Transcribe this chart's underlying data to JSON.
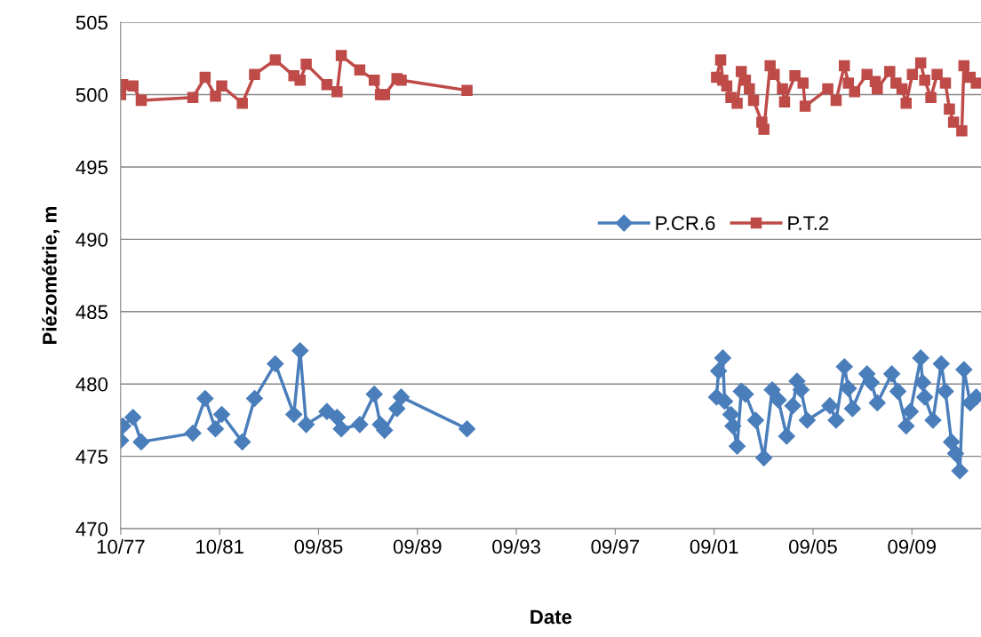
{
  "chart_data": {
    "type": "line",
    "xlabel": "Date",
    "ylabel": "Piézométrie, m",
    "xlim": [
      "1977-10-01",
      "2012-07-10"
    ],
    "ylim": [
      470,
      505
    ],
    "yticks": [
      470,
      475,
      480,
      485,
      490,
      495,
      500,
      505
    ],
    "xticks": [
      {
        "value": "1977-10-02",
        "label": "10/77"
      },
      {
        "value": "1981-10-01",
        "label": "10/81"
      },
      {
        "value": "1985-09-30",
        "label": "09/85"
      },
      {
        "value": "1989-09-29",
        "label": "09/89"
      },
      {
        "value": "1993-09-28",
        "label": "09/93"
      },
      {
        "value": "1997-09-27",
        "label": "09/97"
      },
      {
        "value": "2001-09-26",
        "label": "09/01"
      },
      {
        "value": "2005-09-25",
        "label": "09/05"
      },
      {
        "value": "2009-09-24",
        "label": "09/09"
      }
    ],
    "grid": "y",
    "legend": "center",
    "series": [
      {
        "name": "P.CR.6",
        "color": "#4a7ebb",
        "marker": "diamond",
        "x": [
          "1977-10",
          "1977-11",
          "1978-04",
          "1978-08",
          "1980-09",
          "1981-03",
          "1981-08",
          "1981-11",
          "1982-09",
          "1983-03",
          "1984-01",
          "1984-10",
          "1985-01",
          "1985-04",
          "1986-02",
          "1986-07",
          "1986-09",
          "1987-06",
          "1988-01",
          "1988-04",
          "1988-06",
          "1988-12",
          "1989-02",
          "1991-10",
          "1996-01",
          "2001-11",
          "2001-12",
          "2002-02",
          "2002-03",
          "2002-06",
          "2002-07",
          "2002-09",
          "2002-11",
          "2003-01",
          "2003-06",
          "2003-10",
          "2004-02",
          "2004-05",
          "2004-09",
          "2004-12",
          "2005-02",
          "2005-04",
          "2005-07",
          "2006-06",
          "2006-09",
          "2007-01",
          "2007-03",
          "2007-05",
          "2007-12",
          "2008-02",
          "2008-05",
          "2008-12",
          "2009-03",
          "2009-07",
          "2009-09",
          "2010-02",
          "2010-03",
          "2010-04",
          "2010-08",
          "2010-12",
          "2011-02",
          "2011-05",
          "2011-07",
          "2011-09",
          "2011-11",
          "2012-02",
          "2012-05"
        ],
        "values": [
          476.1,
          477.1,
          477.7,
          476.0,
          476.6,
          479.0,
          476.9,
          477.9,
          476.0,
          479.0,
          481.4,
          477.9,
          482.3,
          477.2,
          478.1,
          477.7,
          476.9,
          477.2,
          479.3,
          477.2,
          476.8,
          478.3,
          479.1,
          476.9,
          null,
          479.1,
          480.9,
          481.8,
          478.8,
          477.9,
          477.1,
          475.7,
          479.5,
          479.3,
          477.5,
          474.9,
          479.6,
          478.9,
          476.4,
          478.5,
          480.2,
          479.6,
          477.5,
          478.5,
          477.5,
          481.2,
          479.7,
          478.3,
          480.7,
          480.1,
          478.7,
          480.7,
          479.5,
          477.1,
          478.1,
          481.8,
          480.1,
          479.1,
          477.5,
          481.4,
          479.5,
          476.0,
          475.2,
          474.0,
          481.0,
          478.7,
          479.1
        ]
      },
      {
        "name": "P.T.2",
        "color": "#be4b48",
        "marker": "square",
        "x": [
          "1977-10",
          "1977-11",
          "1978-04",
          "1978-08",
          "1980-09",
          "1981-03",
          "1981-08",
          "1981-11",
          "1982-09",
          "1983-03",
          "1984-01",
          "1984-10",
          "1985-01",
          "1985-04",
          "1986-02",
          "1986-07",
          "1986-09",
          "1987-06",
          "1988-01",
          "1988-04",
          "1988-06",
          "1988-12",
          "1989-02",
          "1991-10",
          "1996-01",
          "2001-11",
          "2002-01",
          "2002-02",
          "2002-04",
          "2002-06",
          "2002-09",
          "2002-11",
          "2003-01",
          "2003-03",
          "2003-05",
          "2003-09",
          "2003-10",
          "2004-01",
          "2004-03",
          "2004-07",
          "2004-08",
          "2005-01",
          "2005-05",
          "2005-06",
          "2006-05",
          "2006-09",
          "2007-01",
          "2007-03",
          "2007-06",
          "2007-12",
          "2008-04",
          "2008-05",
          "2008-11",
          "2009-02",
          "2009-05",
          "2009-07",
          "2009-10",
          "2010-02",
          "2010-04",
          "2010-07",
          "2010-10",
          "2011-02",
          "2011-04",
          "2011-06",
          "2011-10",
          "2011-11",
          "2012-02",
          "2012-05"
        ],
        "values": [
          500.0,
          500.7,
          500.6,
          499.6,
          499.8,
          501.2,
          499.9,
          500.6,
          499.4,
          501.4,
          502.4,
          501.3,
          501.0,
          502.1,
          500.7,
          500.2,
          502.7,
          501.7,
          501.0,
          500.0,
          500.0,
          501.1,
          501.0,
          500.3,
          null,
          501.2,
          502.4,
          501.0,
          500.6,
          499.8,
          499.4,
          501.6,
          501.0,
          500.4,
          499.6,
          498.1,
          497.6,
          502.0,
          501.4,
          500.4,
          499.5,
          501.3,
          500.8,
          499.2,
          500.4,
          499.6,
          502.0,
          500.8,
          500.2,
          501.4,
          500.9,
          500.4,
          501.6,
          500.8,
          500.4,
          499.4,
          501.4,
          502.2,
          501.0,
          499.8,
          501.4,
          500.8,
          499.0,
          498.1,
          497.5,
          502.0,
          501.2,
          500.8
        ]
      }
    ]
  }
}
